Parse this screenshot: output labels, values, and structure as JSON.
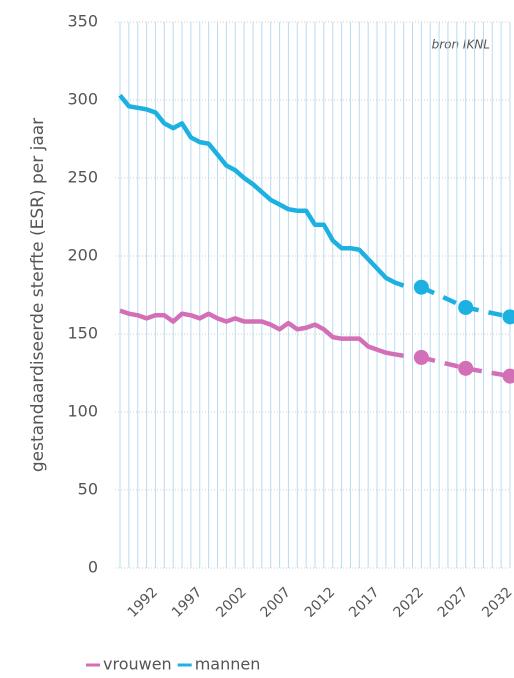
{
  "chart_data": {
    "type": "line",
    "y_label": "gestandaardiseerde sterfte (ESR) per jaar",
    "annotation": "bron IKNL",
    "x": [
      1988,
      1989,
      1990,
      1991,
      1992,
      1993,
      1994,
      1995,
      1996,
      1997,
      1998,
      1999,
      2000,
      2001,
      2002,
      2003,
      2004,
      2005,
      2006,
      2007,
      2008,
      2009,
      2010,
      2011,
      2012,
      2013,
      2014,
      2015,
      2016,
      2017,
      2018,
      2019,
      2020,
      2021,
      2022,
      2023,
      2024,
      2025,
      2026,
      2027,
      2028,
      2029,
      2030,
      2031,
      2032
    ],
    "series": [
      {
        "name": "vrouwen",
        "color": "#d36fb6",
        "values": [
          165,
          163,
          162,
          160,
          162,
          162,
          158,
          163,
          162,
          160,
          163,
          160,
          158,
          160,
          158,
          158,
          158,
          156,
          153,
          157,
          153,
          154,
          156,
          153,
          148,
          147,
          147,
          147,
          142,
          140,
          138,
          137,
          136,
          null,
          null,
          null,
          null,
          null,
          null,
          null,
          null,
          null,
          null,
          null,
          null
        ],
        "projection": [
          null,
          null,
          null,
          null,
          null,
          null,
          null,
          null,
          null,
          null,
          null,
          null,
          null,
          null,
          null,
          null,
          null,
          null,
          null,
          null,
          null,
          null,
          null,
          null,
          null,
          null,
          null,
          null,
          null,
          null,
          null,
          null,
          null,
          null,
          135,
          null,
          null,
          null,
          null,
          128,
          null,
          null,
          null,
          null,
          123
        ]
      },
      {
        "name": "mannen",
        "color": "#1cb1e0",
        "values": [
          303,
          296,
          295,
          294,
          292,
          285,
          282,
          285,
          276,
          273,
          272,
          265,
          258,
          255,
          250,
          246,
          241,
          236,
          233,
          230,
          229,
          229,
          220,
          220,
          210,
          205,
          205,
          204,
          198,
          192,
          186,
          183,
          181,
          null,
          null,
          null,
          null,
          null,
          null,
          null,
          null,
          null,
          null,
          null,
          null
        ],
        "projection": [
          null,
          null,
          null,
          null,
          null,
          null,
          null,
          null,
          null,
          null,
          null,
          null,
          null,
          null,
          null,
          null,
          null,
          null,
          null,
          null,
          null,
          null,
          null,
          null,
          null,
          null,
          null,
          null,
          null,
          null,
          null,
          null,
          null,
          null,
          180,
          null,
          null,
          null,
          null,
          167,
          null,
          null,
          null,
          null,
          161
        ]
      }
    ],
    "xlim": [
      1988,
      2032
    ],
    "xticks": [
      1992,
      1997,
      2002,
      2007,
      2012,
      2017,
      2022,
      2027,
      2032
    ],
    "ylim": [
      0,
      350
    ],
    "yticks": [
      0,
      50,
      100,
      150,
      200,
      250,
      300,
      350
    ],
    "grid": true
  }
}
